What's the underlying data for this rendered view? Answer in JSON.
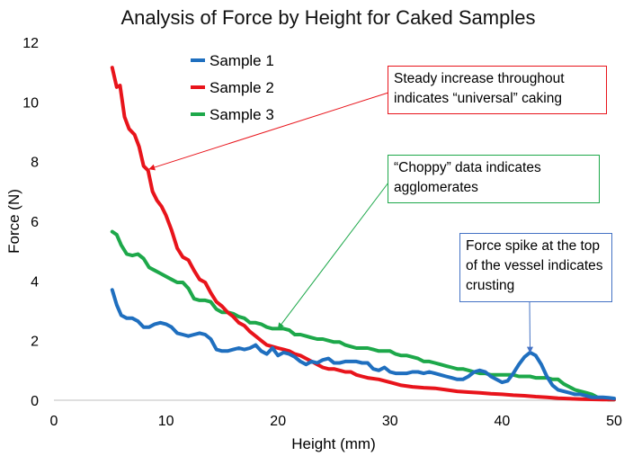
{
  "chart_data": {
    "type": "line",
    "title": "Analysis of Force by Height for Caked Samples",
    "xlabel": "Height (mm)",
    "ylabel": "Force (N)",
    "xlim": [
      0,
      50
    ],
    "ylim": [
      0,
      12
    ],
    "xticks": [
      0,
      10,
      20,
      30,
      40,
      50
    ],
    "yticks": [
      0,
      2,
      4,
      6,
      8,
      10,
      12
    ],
    "grid": false,
    "legend": "top-left",
    "series": [
      {
        "name": "Sample 1",
        "color": "#1F6FBF",
        "points": [
          [
            5.2,
            3.7
          ],
          [
            5.6,
            3.2
          ],
          [
            6.0,
            2.85
          ],
          [
            6.5,
            2.75
          ],
          [
            7.0,
            2.75
          ],
          [
            7.5,
            2.65
          ],
          [
            8.0,
            2.45
          ],
          [
            8.5,
            2.45
          ],
          [
            9.0,
            2.55
          ],
          [
            9.5,
            2.6
          ],
          [
            10.0,
            2.55
          ],
          [
            10.5,
            2.45
          ],
          [
            11.0,
            2.25
          ],
          [
            11.5,
            2.2
          ],
          [
            12.0,
            2.15
          ],
          [
            12.5,
            2.2
          ],
          [
            13.0,
            2.25
          ],
          [
            13.5,
            2.2
          ],
          [
            14.0,
            2.05
          ],
          [
            14.5,
            1.7
          ],
          [
            15.0,
            1.65
          ],
          [
            15.5,
            1.65
          ],
          [
            16.0,
            1.7
          ],
          [
            16.5,
            1.75
          ],
          [
            17.0,
            1.7
          ],
          [
            17.5,
            1.75
          ],
          [
            18.0,
            1.85
          ],
          [
            18.5,
            1.65
          ],
          [
            19.0,
            1.55
          ],
          [
            19.5,
            1.75
          ],
          [
            20.0,
            1.5
          ],
          [
            20.5,
            1.6
          ],
          [
            21.0,
            1.55
          ],
          [
            21.5,
            1.45
          ],
          [
            22.0,
            1.3
          ],
          [
            22.5,
            1.2
          ],
          [
            23.0,
            1.3
          ],
          [
            23.5,
            1.25
          ],
          [
            24.0,
            1.35
          ],
          [
            24.5,
            1.4
          ],
          [
            25.0,
            1.25
          ],
          [
            25.5,
            1.25
          ],
          [
            26.0,
            1.3
          ],
          [
            26.5,
            1.3
          ],
          [
            27.0,
            1.3
          ],
          [
            27.5,
            1.25
          ],
          [
            28.0,
            1.25
          ],
          [
            28.5,
            1.05
          ],
          [
            29.0,
            1.0
          ],
          [
            29.5,
            1.1
          ],
          [
            30.0,
            0.95
          ],
          [
            30.5,
            0.9
          ],
          [
            31.0,
            0.9
          ],
          [
            31.5,
            0.9
          ],
          [
            32.0,
            0.95
          ],
          [
            32.5,
            0.95
          ],
          [
            33.0,
            0.9
          ],
          [
            33.5,
            0.95
          ],
          [
            34.0,
            0.9
          ],
          [
            34.5,
            0.85
          ],
          [
            35.0,
            0.8
          ],
          [
            35.5,
            0.75
          ],
          [
            36.0,
            0.7
          ],
          [
            36.5,
            0.7
          ],
          [
            37.0,
            0.8
          ],
          [
            37.5,
            0.95
          ],
          [
            38.0,
            1.0
          ],
          [
            38.5,
            0.95
          ],
          [
            39.0,
            0.8
          ],
          [
            39.5,
            0.7
          ],
          [
            40.0,
            0.6
          ],
          [
            40.5,
            0.65
          ],
          [
            41.0,
            0.9
          ],
          [
            41.5,
            1.2
          ],
          [
            42.0,
            1.45
          ],
          [
            42.5,
            1.6
          ],
          [
            43.0,
            1.5
          ],
          [
            43.5,
            1.2
          ],
          [
            44.0,
            0.8
          ],
          [
            44.5,
            0.5
          ],
          [
            45.0,
            0.35
          ],
          [
            45.5,
            0.3
          ],
          [
            46.0,
            0.25
          ],
          [
            46.5,
            0.2
          ],
          [
            47.0,
            0.2
          ],
          [
            47.5,
            0.15
          ],
          [
            48.0,
            0.1
          ],
          [
            48.5,
            0.1
          ],
          [
            49.0,
            0.1
          ],
          [
            49.5,
            0.08
          ],
          [
            50.0,
            0.06
          ]
        ]
      },
      {
        "name": "Sample 2",
        "color": "#E8141B",
        "points": [
          [
            5.2,
            11.15
          ],
          [
            5.6,
            10.5
          ],
          [
            5.9,
            10.55
          ],
          [
            6.3,
            9.5
          ],
          [
            6.7,
            9.1
          ],
          [
            7.2,
            8.9
          ],
          [
            7.6,
            8.5
          ],
          [
            8.0,
            7.85
          ],
          [
            8.4,
            7.7
          ],
          [
            8.8,
            7.0
          ],
          [
            9.2,
            6.7
          ],
          [
            9.6,
            6.5
          ],
          [
            10.0,
            6.2
          ],
          [
            10.5,
            5.7
          ],
          [
            11.0,
            5.1
          ],
          [
            11.5,
            4.8
          ],
          [
            12.0,
            4.7
          ],
          [
            12.5,
            4.35
          ],
          [
            13.0,
            4.05
          ],
          [
            13.5,
            3.95
          ],
          [
            14.0,
            3.6
          ],
          [
            14.5,
            3.3
          ],
          [
            15.0,
            3.15
          ],
          [
            15.5,
            2.95
          ],
          [
            16.0,
            2.8
          ],
          [
            16.5,
            2.6
          ],
          [
            17.0,
            2.5
          ],
          [
            17.5,
            2.3
          ],
          [
            18.0,
            2.15
          ],
          [
            18.5,
            2.0
          ],
          [
            19.0,
            1.85
          ],
          [
            19.5,
            1.8
          ],
          [
            20.0,
            1.75
          ],
          [
            20.5,
            1.7
          ],
          [
            21.0,
            1.65
          ],
          [
            21.5,
            1.55
          ],
          [
            22.0,
            1.5
          ],
          [
            22.5,
            1.4
          ],
          [
            23.0,
            1.3
          ],
          [
            23.5,
            1.2
          ],
          [
            24.0,
            1.1
          ],
          [
            24.5,
            1.05
          ],
          [
            25.0,
            1.05
          ],
          [
            25.5,
            1.0
          ],
          [
            26.0,
            0.95
          ],
          [
            26.5,
            0.95
          ],
          [
            27.0,
            0.85
          ],
          [
            27.5,
            0.8
          ],
          [
            28.0,
            0.75
          ],
          [
            29.0,
            0.7
          ],
          [
            30.0,
            0.6
          ],
          [
            31.0,
            0.5
          ],
          [
            32.0,
            0.45
          ],
          [
            33.0,
            0.42
          ],
          [
            34.0,
            0.4
          ],
          [
            35.0,
            0.35
          ],
          [
            36.0,
            0.3
          ],
          [
            37.0,
            0.27
          ],
          [
            38.0,
            0.25
          ],
          [
            39.0,
            0.22
          ],
          [
            40.0,
            0.2
          ],
          [
            41.0,
            0.17
          ],
          [
            42.0,
            0.15
          ],
          [
            43.0,
            0.12
          ],
          [
            44.0,
            0.1
          ],
          [
            45.0,
            0.07
          ],
          [
            46.0,
            0.05
          ],
          [
            47.0,
            0.04
          ],
          [
            48.0,
            0.03
          ],
          [
            49.0,
            0.02
          ],
          [
            50.0,
            0.02
          ]
        ]
      },
      {
        "name": "Sample 3",
        "color": "#1DA84A",
        "points": [
          [
            5.2,
            5.65
          ],
          [
            5.6,
            5.55
          ],
          [
            6.0,
            5.2
          ],
          [
            6.5,
            4.9
          ],
          [
            7.0,
            4.85
          ],
          [
            7.5,
            4.9
          ],
          [
            8.0,
            4.75
          ],
          [
            8.5,
            4.45
          ],
          [
            9.0,
            4.35
          ],
          [
            9.5,
            4.25
          ],
          [
            10.0,
            4.15
          ],
          [
            10.5,
            4.05
          ],
          [
            11.0,
            3.95
          ],
          [
            11.5,
            3.95
          ],
          [
            12.0,
            3.75
          ],
          [
            12.5,
            3.4
          ],
          [
            13.0,
            3.35
          ],
          [
            13.5,
            3.35
          ],
          [
            14.0,
            3.3
          ],
          [
            14.5,
            3.05
          ],
          [
            15.0,
            2.95
          ],
          [
            15.5,
            2.95
          ],
          [
            16.0,
            2.9
          ],
          [
            16.5,
            2.8
          ],
          [
            17.0,
            2.75
          ],
          [
            17.5,
            2.6
          ],
          [
            18.0,
            2.6
          ],
          [
            18.5,
            2.55
          ],
          [
            19.0,
            2.45
          ],
          [
            19.5,
            2.4
          ],
          [
            20.0,
            2.4
          ],
          [
            20.5,
            2.4
          ],
          [
            21.0,
            2.35
          ],
          [
            21.5,
            2.2
          ],
          [
            22.0,
            2.2
          ],
          [
            22.5,
            2.15
          ],
          [
            23.0,
            2.1
          ],
          [
            23.5,
            2.05
          ],
          [
            24.0,
            2.05
          ],
          [
            24.5,
            2.0
          ],
          [
            25.0,
            1.95
          ],
          [
            25.5,
            1.95
          ],
          [
            26.0,
            1.85
          ],
          [
            26.5,
            1.8
          ],
          [
            27.0,
            1.75
          ],
          [
            27.5,
            1.75
          ],
          [
            28.0,
            1.75
          ],
          [
            28.5,
            1.7
          ],
          [
            29.0,
            1.65
          ],
          [
            29.5,
            1.65
          ],
          [
            30.0,
            1.65
          ],
          [
            30.5,
            1.55
          ],
          [
            31.0,
            1.5
          ],
          [
            31.5,
            1.5
          ],
          [
            32.0,
            1.45
          ],
          [
            32.5,
            1.4
          ],
          [
            33.0,
            1.3
          ],
          [
            33.5,
            1.3
          ],
          [
            34.0,
            1.25
          ],
          [
            34.5,
            1.2
          ],
          [
            35.0,
            1.15
          ],
          [
            35.5,
            1.1
          ],
          [
            36.0,
            1.05
          ],
          [
            36.5,
            1.05
          ],
          [
            37.0,
            1.0
          ],
          [
            37.5,
            0.95
          ],
          [
            38.0,
            0.9
          ],
          [
            38.5,
            0.9
          ],
          [
            39.0,
            0.85
          ],
          [
            39.5,
            0.85
          ],
          [
            40.0,
            0.85
          ],
          [
            40.5,
            0.85
          ],
          [
            41.0,
            0.85
          ],
          [
            41.5,
            0.8
          ],
          [
            42.0,
            0.8
          ],
          [
            42.5,
            0.8
          ],
          [
            43.0,
            0.75
          ],
          [
            43.5,
            0.75
          ],
          [
            44.0,
            0.75
          ],
          [
            44.5,
            0.7
          ],
          [
            45.0,
            0.7
          ],
          [
            45.5,
            0.55
          ],
          [
            46.0,
            0.45
          ],
          [
            46.5,
            0.35
          ],
          [
            47.0,
            0.3
          ],
          [
            47.5,
            0.25
          ],
          [
            48.0,
            0.2
          ],
          [
            48.5,
            0.1
          ],
          [
            49.0,
            0.05
          ],
          [
            49.5,
            0.02
          ],
          [
            50.0,
            0.02
          ]
        ]
      }
    ],
    "annotations": [
      {
        "text": "Steady increase throughout indicates “universal” caking",
        "color": "#E8141B",
        "target": [
          8.5,
          7.75
        ]
      },
      {
        "text": "“Choppy” data indicates agglomerates",
        "color": "#1DA84A",
        "target": [
          20.0,
          2.4
        ]
      },
      {
        "text": "Force spike at the top of the vessel indicates crusting",
        "color": "#4472C4",
        "target": [
          42.5,
          1.6
        ]
      }
    ]
  }
}
